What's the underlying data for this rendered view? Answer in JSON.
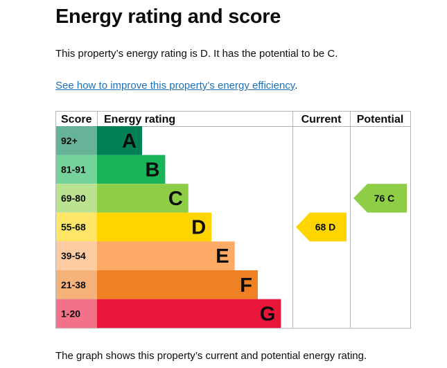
{
  "page": {
    "title": "Energy rating and score",
    "intro": "This property’s energy rating is D. It has the potential to be C.",
    "link_text": "See how to improve this property’s energy efficiency",
    "link_suffix": ".",
    "footer": "The graph shows this property’s current and potential energy rating."
  },
  "chart_data": {
    "type": "bar",
    "headers": {
      "score": "Score",
      "rating": "Energy rating",
      "current": "Current",
      "potential": "Potential"
    },
    "bands": [
      {
        "letter": "A",
        "range": "92+",
        "min": 92,
        "max": 100,
        "color": "#008054",
        "score_bg": "#66b398"
      },
      {
        "letter": "B",
        "range": "81-91",
        "min": 81,
        "max": 91,
        "color": "#19b459",
        "score_bg": "#75d29b"
      },
      {
        "letter": "C",
        "range": "69-80",
        "min": 69,
        "max": 80,
        "color": "#8dce46",
        "score_bg": "#bbe290"
      },
      {
        "letter": "D",
        "range": "55-68",
        "min": 55,
        "max": 68,
        "color": "#ffd500",
        "score_bg": "#ffe666"
      },
      {
        "letter": "E",
        "range": "39-54",
        "min": 39,
        "max": 54,
        "color": "#fcaa65",
        "score_bg": "#fdcca3"
      },
      {
        "letter": "F",
        "range": "21-38",
        "min": 21,
        "max": 38,
        "color": "#ef8023",
        "score_bg": "#f5b37b"
      },
      {
        "letter": "G",
        "range": "1-20",
        "min": 1,
        "max": 20,
        "color": "#e9153b",
        "score_bg": "#f27389"
      }
    ],
    "current": {
      "score": 68,
      "letter": "D",
      "label": "68 D",
      "color": "#ffd500"
    },
    "potential": {
      "score": 76,
      "letter": "C",
      "label": "76 C",
      "color": "#8dce46"
    }
  }
}
